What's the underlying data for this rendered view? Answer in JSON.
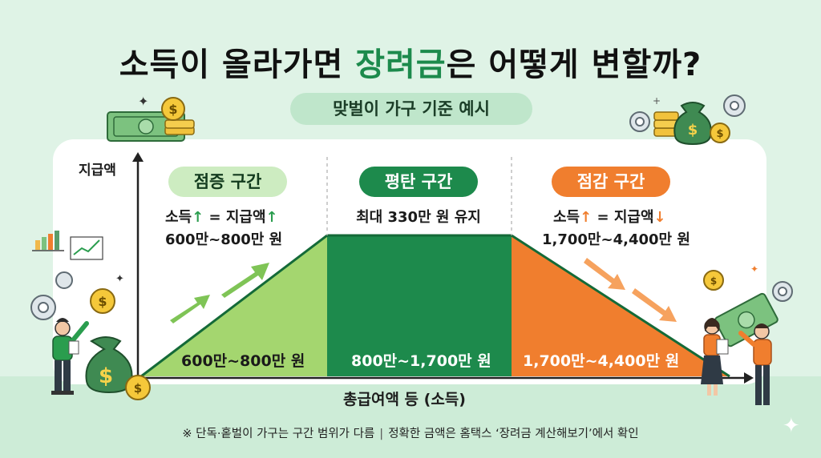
{
  "title": {
    "before": "소득이 올라가면 ",
    "accent": "장려금",
    "after": "은 어떻게 변할까?"
  },
  "subtitle": "맞벌이 가구 기준 예시",
  "axes": {
    "y_label": "지급액",
    "x_label": "총급여액 등 (소득)"
  },
  "sections": {
    "increase": {
      "label": "점증 구간",
      "line1_a": "소득",
      "line1_b": " = 지급액",
      "arrow_income": "↑",
      "arrow_pay": "↑",
      "line2": "600만~800만 원",
      "band_label": "600만~800만 원"
    },
    "flat": {
      "label": "평탄 구간",
      "line1": "최대 330만 원 유지",
      "band_label": "800만~1,700만 원"
    },
    "decrease": {
      "label": "점감 구간",
      "line1_a": "소득",
      "line1_b": " = 지급액",
      "arrow_income": "↑",
      "arrow_pay": "↓",
      "line2": "1,700만~4,400만 원",
      "band_label": "1,700만~4,400만 원"
    }
  },
  "footnote": {
    "left": "※ 단독·홑벌이 가구는 구간 범위가 다름",
    "separator": "|",
    "right": "정확한 금액은 홈택스 ‘장려금 계산해보기’에서 확인"
  },
  "colors": {
    "increase": "#a4d66f",
    "flat": "#1d8a4c",
    "decrease": "#f07e2e",
    "accent": "#1c8a4c",
    "background": "#dff3e6"
  },
  "icons": [
    "money-bill-icon",
    "coin-icon",
    "money-bag-icon",
    "gear-icon",
    "bar-chart-icon",
    "line-chart-icon",
    "sparkle-icon",
    "person-icon"
  ]
}
